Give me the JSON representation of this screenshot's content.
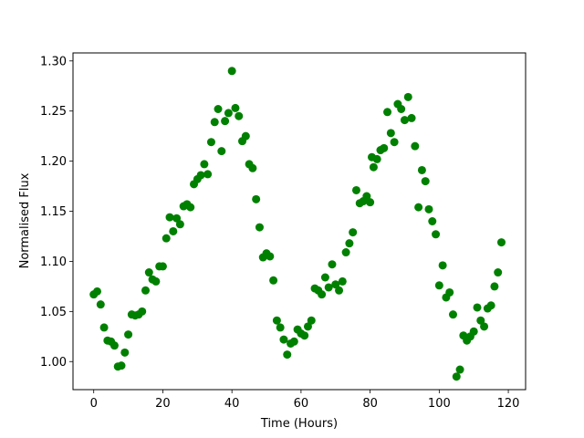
{
  "chart_data": {
    "type": "scatter",
    "xlabel": "Time (Hours)",
    "ylabel": "Normalised Flux",
    "xlim": [
      -6,
      125
    ],
    "ylim": [
      0.972,
      1.308
    ],
    "xticks": [
      0,
      20,
      40,
      60,
      80,
      100,
      120
    ],
    "yticks": [
      1.0,
      1.05,
      1.1,
      1.15,
      1.2,
      1.25,
      1.3
    ],
    "xtick_labels": [
      "0",
      "20",
      "40",
      "60",
      "80",
      "100",
      "120"
    ],
    "ytick_labels": [
      "1.00",
      "1.05",
      "1.10",
      "1.15",
      "1.20",
      "1.25",
      "1.30"
    ],
    "grid": false,
    "marker_color": "#008000",
    "series": [
      {
        "points": [
          [
            0,
            1.067
          ],
          [
            1,
            1.07
          ],
          [
            2,
            1.057
          ],
          [
            3,
            1.034
          ],
          [
            4,
            1.021
          ],
          [
            5,
            1.02
          ],
          [
            6,
            1.016
          ],
          [
            7,
            0.995
          ],
          [
            8,
            0.996
          ],
          [
            9,
            1.009
          ],
          [
            10,
            1.027
          ],
          [
            11,
            1.047
          ],
          [
            12,
            1.046
          ],
          [
            13,
            1.047
          ],
          [
            14,
            1.05
          ],
          [
            15,
            1.071
          ],
          [
            16,
            1.089
          ],
          [
            17,
            1.082
          ],
          [
            18,
            1.08
          ],
          [
            19,
            1.095
          ],
          [
            20,
            1.095
          ],
          [
            21,
            1.123
          ],
          [
            22,
            1.144
          ],
          [
            23,
            1.13
          ],
          [
            24,
            1.143
          ],
          [
            25,
            1.137
          ],
          [
            26,
            1.155
          ],
          [
            27,
            1.157
          ],
          [
            28,
            1.154
          ],
          [
            29,
            1.177
          ],
          [
            30,
            1.182
          ],
          [
            31,
            1.186
          ],
          [
            32,
            1.197
          ],
          [
            33,
            1.187
          ],
          [
            34,
            1.219
          ],
          [
            35,
            1.239
          ],
          [
            36,
            1.252
          ],
          [
            37,
            1.21
          ],
          [
            38,
            1.24
          ],
          [
            39,
            1.248
          ],
          [
            40,
            1.29
          ],
          [
            41,
            1.253
          ],
          [
            42,
            1.245
          ],
          [
            43,
            1.22
          ],
          [
            44,
            1.225
          ],
          [
            45,
            1.197
          ],
          [
            46,
            1.193
          ],
          [
            47,
            1.162
          ],
          [
            48,
            1.134
          ],
          [
            49,
            1.104
          ],
          [
            50,
            1.108
          ],
          [
            51,
            1.105
          ],
          [
            52,
            1.081
          ],
          [
            53,
            1.041
          ],
          [
            54,
            1.034
          ],
          [
            55,
            1.022
          ],
          [
            56,
            1.007
          ],
          [
            57,
            1.018
          ],
          [
            58,
            1.02
          ],
          [
            59,
            1.032
          ],
          [
            60,
            1.028
          ],
          [
            61,
            1.026
          ],
          [
            62,
            1.035
          ],
          [
            63,
            1.041
          ],
          [
            64,
            1.073
          ],
          [
            65,
            1.071
          ],
          [
            66,
            1.067
          ],
          [
            67,
            1.084
          ],
          [
            68,
            1.074
          ],
          [
            69,
            1.097
          ],
          [
            70,
            1.077
          ],
          [
            71,
            1.071
          ],
          [
            72,
            1.08
          ],
          [
            73,
            1.109
          ],
          [
            74,
            1.118
          ],
          [
            75,
            1.129
          ],
          [
            76,
            1.171
          ],
          [
            77,
            1.158
          ],
          [
            78,
            1.16
          ],
          [
            79,
            1.165
          ],
          [
            80,
            1.159
          ],
          [
            80.5,
            1.204
          ],
          [
            81,
            1.194
          ],
          [
            82,
            1.202
          ],
          [
            83,
            1.211
          ],
          [
            84,
            1.213
          ],
          [
            85,
            1.249
          ],
          [
            86,
            1.228
          ],
          [
            87,
            1.219
          ],
          [
            88,
            1.257
          ],
          [
            89,
            1.252
          ],
          [
            90,
            1.241
          ],
          [
            91,
            1.264
          ],
          [
            92,
            1.243
          ],
          [
            93,
            1.215
          ],
          [
            94,
            1.154
          ],
          [
            95,
            1.191
          ],
          [
            96,
            1.18
          ],
          [
            97,
            1.152
          ],
          [
            98,
            1.14
          ],
          [
            99,
            1.127
          ],
          [
            100,
            1.076
          ],
          [
            101,
            1.096
          ],
          [
            102,
            1.064
          ],
          [
            103,
            1.069
          ],
          [
            104,
            1.047
          ],
          [
            105,
            0.985
          ],
          [
            106,
            0.992
          ],
          [
            107,
            1.026
          ],
          [
            108,
            1.021
          ],
          [
            109,
            1.025
          ],
          [
            110,
            1.03
          ],
          [
            111,
            1.054
          ],
          [
            112,
            1.041
          ],
          [
            113,
            1.035
          ],
          [
            114,
            1.053
          ],
          [
            115,
            1.056
          ],
          [
            116,
            1.075
          ],
          [
            117,
            1.089
          ],
          [
            118,
            1.119
          ]
        ]
      }
    ]
  }
}
